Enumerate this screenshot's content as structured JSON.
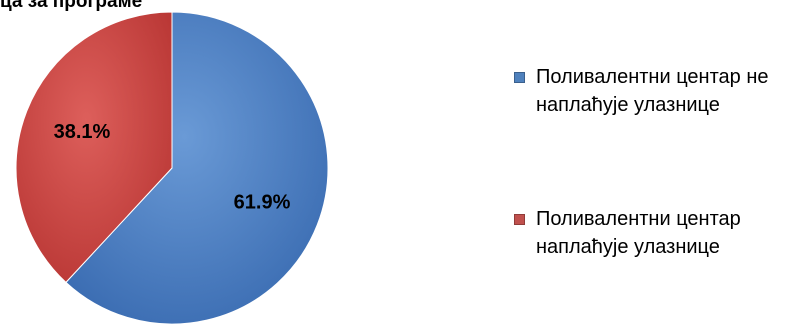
{
  "chart_data": {
    "type": "pie",
    "title": "ца за програме",
    "slices": [
      {
        "label": "Поливалентни центар не наплаћује улазнице",
        "value": 61.9,
        "value_label": "61.9%",
        "color": "#4F81BD"
      },
      {
        "label": "Поливалентни центар наплаћује улазнице",
        "value": 38.1,
        "value_label": "38.1%",
        "color": "#C0504D"
      }
    ],
    "start_angle": "12 o'clock",
    "direction": "clockwise",
    "legend_position": "right"
  }
}
